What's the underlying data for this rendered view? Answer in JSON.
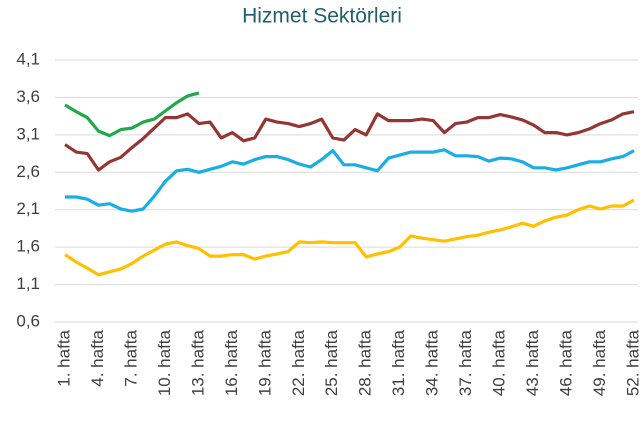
{
  "chart_data": {
    "type": "line",
    "title": "Hizmet Sektörleri",
    "categories": [
      "1. hafta",
      null,
      null,
      "4. hafta",
      null,
      null,
      "7. hafta",
      null,
      null,
      "10. hafta",
      null,
      null,
      "13. hafta",
      null,
      null,
      "16. hafta",
      null,
      null,
      "19. hafta",
      null,
      null,
      "22. hafta",
      null,
      null,
      "25. hafta",
      null,
      null,
      "28. hafta",
      null,
      null,
      "31. hafta",
      null,
      null,
      "34. hafta",
      null,
      null,
      "37. hafta",
      null,
      null,
      "40. hafta",
      null,
      null,
      "43. hafta",
      null,
      null,
      "46. hafta",
      null,
      null,
      "49. hafta",
      null,
      null,
      "52. hafta"
    ],
    "series": [
      {
        "color": "#22a84a",
        "values": [
          3.5,
          3.41,
          3.33,
          3.15,
          3.09,
          3.17,
          3.19,
          3.27,
          3.31,
          3.42,
          3.53,
          3.62,
          3.66,
          null,
          null,
          null,
          null,
          null,
          null,
          null,
          null,
          null,
          null,
          null,
          null,
          null,
          null,
          null,
          null,
          null,
          null,
          null,
          null,
          null,
          null,
          null,
          null,
          null,
          null,
          null,
          null,
          null,
          null,
          null,
          null,
          null,
          null,
          null,
          null,
          null,
          null,
          null
        ]
      },
      {
        "color": "#943634",
        "values": [
          2.97,
          2.87,
          2.85,
          2.63,
          2.74,
          2.8,
          2.93,
          3.05,
          3.19,
          3.33,
          3.33,
          3.38,
          3.25,
          3.27,
          3.06,
          3.13,
          3.02,
          3.06,
          3.31,
          3.27,
          3.25,
          3.21,
          3.25,
          3.31,
          3.06,
          3.03,
          3.17,
          3.1,
          3.38,
          3.29,
          3.29,
          3.29,
          3.31,
          3.29,
          3.13,
          3.25,
          3.27,
          3.33,
          3.33,
          3.37,
          3.34,
          3.3,
          3.23,
          3.13,
          3.13,
          3.1,
          3.13,
          3.18,
          3.25,
          3.3,
          3.38,
          3.41
        ]
      },
      {
        "color": "#1aaee5",
        "values": [
          2.27,
          2.27,
          2.24,
          2.16,
          2.18,
          2.11,
          2.08,
          2.11,
          2.28,
          2.48,
          2.62,
          2.64,
          2.6,
          2.64,
          2.68,
          2.74,
          2.71,
          2.77,
          2.81,
          2.81,
          2.77,
          2.71,
          2.67,
          2.77,
          2.89,
          2.7,
          2.7,
          2.66,
          2.62,
          2.79,
          2.83,
          2.87,
          2.87,
          2.87,
          2.9,
          2.82,
          2.82,
          2.81,
          2.75,
          2.79,
          2.78,
          2.74,
          2.66,
          2.66,
          2.63,
          2.66,
          2.7,
          2.74,
          2.74,
          2.78,
          2.81,
          2.89
        ]
      },
      {
        "color": "#ffc000",
        "values": [
          1.5,
          1.4,
          1.32,
          1.23,
          1.27,
          1.31,
          1.38,
          1.48,
          1.56,
          1.64,
          1.67,
          1.62,
          1.58,
          1.48,
          1.48,
          1.5,
          1.5,
          1.44,
          1.48,
          1.51,
          1.54,
          1.67,
          1.66,
          1.67,
          1.66,
          1.66,
          1.66,
          1.47,
          1.51,
          1.54,
          1.6,
          1.75,
          1.72,
          1.7,
          1.68,
          1.71,
          1.74,
          1.76,
          1.8,
          1.83,
          1.87,
          1.92,
          1.88,
          1.95,
          2.0,
          2.03,
          2.1,
          2.15,
          2.11,
          2.15,
          2.15,
          2.23
        ]
      }
    ],
    "ylim": [
      0.6,
      4.1
    ],
    "yticks": [
      {
        "value": 0.6,
        "label": "0,6"
      },
      {
        "value": 1.1,
        "label": "1,1"
      },
      {
        "value": 1.6,
        "label": "1,6"
      },
      {
        "value": 2.1,
        "label": "2,1"
      },
      {
        "value": 2.6,
        "label": "2,6"
      },
      {
        "value": 3.1,
        "label": "3,1"
      },
      {
        "value": 3.6,
        "label": "3,6"
      },
      {
        "value": 4.1,
        "label": "4,1"
      }
    ],
    "grid": true
  }
}
